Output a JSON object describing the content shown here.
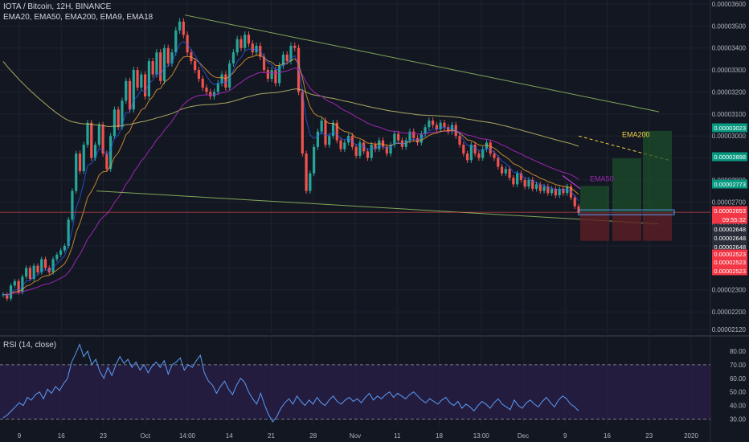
{
  "header": {
    "symbol_line": "IOTA / Bitcoin, 12H, BINANCE",
    "indicators_line": "EMA20, EMA50, EMA200, EMA9, EMA18"
  },
  "rsi_panel": {
    "title": "RSI (14, close)"
  },
  "colors": {
    "background": "#131722",
    "grid": "#1e222d",
    "up_candle": "#26a69a",
    "down_candle": "#ef5350",
    "rsi_line": "#5b9cf6",
    "rsi_band": "#2a1f4a",
    "ema200": "#c8c06a",
    "ema50": "#9c27b0",
    "ema_short": "#f0a030",
    "wedge": "#9ccc65",
    "green_zone": "#1e4d2b",
    "red_zone": "#5c1f24"
  },
  "chart_data": {
    "type": "candlestick",
    "title": "IOTA / Bitcoin, 12H, BINANCE",
    "ylim": [
      2.12e-05,
      3.6e-05
    ],
    "y_ticks": [
      "0.00003600",
      "0.00003500",
      "0.00003400",
      "0.00003300",
      "0.00003200",
      "0.00003100",
      "0.00003000",
      "0.00002900",
      "0.00002800",
      "0.00002700",
      "0.00002600",
      "0.00002500",
      "0.00002400",
      "0.00002300",
      "0.00002200",
      "0.00002120"
    ],
    "x_ticks": [
      "9",
      "16",
      "23",
      "Oct",
      "14:00",
      "14",
      "21",
      "28",
      "Nov",
      "11",
      "18",
      "13:00",
      "Dec",
      "9",
      "16",
      "23",
      "2020"
    ],
    "price_badges": [
      {
        "text": "0.00003023",
        "kind": "green"
      },
      {
        "text": "0.00002898",
        "kind": "green"
      },
      {
        "text": "0.00002773",
        "kind": "green"
      },
      {
        "text": "0.00002653",
        "kind": "red"
      },
      {
        "text": "09:55:32",
        "kind": "red"
      },
      {
        "text": "0.00002648",
        "kind": "dark"
      },
      {
        "text": "0.00002648",
        "kind": "dark"
      },
      {
        "text": "0.00002648",
        "kind": "dark"
      },
      {
        "text": "0.00002523",
        "kind": "red"
      },
      {
        "text": "0.00002523",
        "kind": "red"
      },
      {
        "text": "0.00002523",
        "kind": "red"
      }
    ],
    "annotations": [
      {
        "text": "EMA200",
        "color": "#f5d142"
      },
      {
        "text": "EMA50",
        "color": "#9c27b0"
      }
    ],
    "close_series": [
      2.28e-05,
      2.26e-05,
      2.32e-05,
      2.34e-05,
      2.29e-05,
      2.36e-05,
      2.4e-05,
      2.35e-05,
      2.41e-05,
      2.38e-05,
      2.44e-05,
      2.4e-05,
      2.38e-05,
      2.44e-05,
      2.46e-05,
      2.48e-05,
      2.5e-05,
      2.62e-05,
      2.75e-05,
      2.92e-05,
      2.84e-05,
      2.96e-05,
      3.06e-05,
      2.9e-05,
      2.96e-05,
      3.05e-05,
      2.92e-05,
      2.85e-05,
      3e-05,
      3.12e-05,
      3.04e-05,
      3.16e-05,
      3.25e-05,
      3.12e-05,
      3.3e-05,
      3.22e-05,
      3.28e-05,
      3.18e-05,
      3.34e-05,
      3.28e-05,
      3.38e-05,
      3.25e-05,
      3.4e-05,
      3.33e-05,
      3.38e-05,
      3.48e-05,
      3.52e-05,
      3.46e-05,
      3.38e-05,
      3.34e-05,
      3.3e-05,
      3.26e-05,
      3.22e-05,
      3.2e-05,
      3.18e-05,
      3.2e-05,
      3.24e-05,
      3.28e-05,
      3.22e-05,
      3.33e-05,
      3.38e-05,
      3.44e-05,
      3.4e-05,
      3.46e-05,
      3.42e-05,
      3.38e-05,
      3.41e-05,
      3.36e-05,
      3.3e-05,
      3.26e-05,
      3.3e-05,
      3.24e-05,
      3.32e-05,
      3.37e-05,
      3.34e-05,
      3.41e-05,
      3.4e-05,
      3.2e-05,
      2.92e-05,
      2.75e-05,
      2.83e-05,
      2.95e-05,
      3.02e-05,
      3.07e-05,
      2.96e-05,
      3e-05,
      3.06e-05,
      2.98e-05,
      2.94e-05,
      2.97e-05,
      3e-05,
      2.95e-05,
      2.91e-05,
      2.97e-05,
      2.93e-05,
      2.9e-05,
      2.96e-05,
      2.94e-05,
      2.98e-05,
      2.95e-05,
      2.92e-05,
      2.96e-05,
      3.01e-05,
      2.98e-05,
      2.95e-05,
      2.98e-05,
      3.02e-05,
      2.99e-05,
      2.97e-05,
      3.01e-05,
      3.04e-05,
      3.07e-05,
      3.05e-05,
      3.03e-05,
      3.06e-05,
      3.04e-05,
      3.02e-05,
      3.05e-05,
      3e-05,
      2.96e-05,
      2.92e-05,
      2.89e-05,
      2.96e-05,
      2.92e-05,
      2.9e-05,
      2.94e-05,
      2.97e-05,
      2.92e-05,
      2.9e-05,
      2.86e-05,
      2.83e-05,
      2.85e-05,
      2.81e-05,
      2.78e-05,
      2.83e-05,
      2.8e-05,
      2.77e-05,
      2.8e-05,
      2.76e-05,
      2.78e-05,
      2.75e-05,
      2.77e-05,
      2.74e-05,
      2.76e-05,
      2.73e-05,
      2.76e-05,
      2.74e-05,
      2.77e-05,
      2.72e-05,
      2.68e-05,
      2.65e-05
    ],
    "rsi_ylim": [
      25,
      90
    ],
    "rsi_ticks": [
      80,
      70,
      60,
      50,
      40,
      30
    ],
    "rsi_levels": [
      70,
      30
    ],
    "rsi_series": [
      31,
      33,
      36,
      39,
      42,
      40,
      46,
      44,
      48,
      50,
      45,
      52,
      49,
      54,
      51,
      56,
      60,
      72,
      78,
      85,
      76,
      80,
      70,
      74,
      65,
      60,
      68,
      62,
      70,
      76,
      71,
      74,
      68,
      72,
      66,
      70,
      64,
      69,
      72,
      68,
      73,
      63,
      70,
      72,
      75,
      66,
      70,
      68,
      73,
      77,
      64,
      58,
      55,
      49,
      54,
      58,
      52,
      48,
      55,
      60,
      57,
      50,
      45,
      41,
      49,
      40,
      33,
      28,
      32,
      38,
      42,
      45,
      41,
      47,
      43,
      40,
      44,
      41,
      46,
      42,
      40,
      44,
      47,
      43,
      41,
      44,
      46,
      43,
      45,
      42,
      46,
      49,
      44,
      47,
      45,
      48,
      50,
      46,
      49,
      47,
      45,
      48,
      50,
      47,
      44,
      42,
      45,
      43,
      41,
      44,
      46,
      42,
      40,
      43,
      38,
      41,
      39,
      36,
      40,
      43,
      41,
      38,
      42,
      45,
      41,
      39,
      37,
      44,
      40,
      38,
      42,
      44,
      41,
      39,
      43,
      46,
      42,
      39,
      44,
      47,
      45,
      41,
      39,
      36
    ]
  }
}
